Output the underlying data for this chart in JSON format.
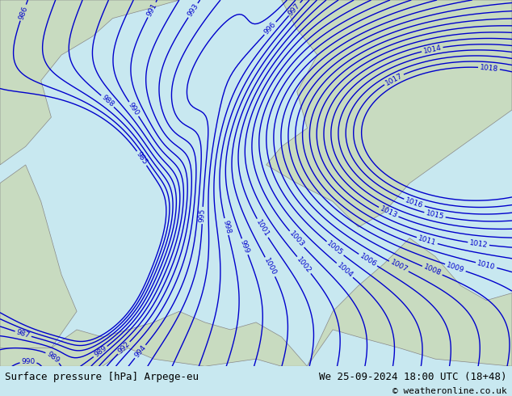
{
  "title_left": "Surface pressure [hPa] Arpege-eu",
  "title_right": "We 25-09-2024 18:00 UTC (18+48)",
  "copyright": "© weatheronline.co.uk",
  "footer_bg": "#d4f5d4",
  "map_bg_light": "#e8f5e8",
  "map_bg_gray": "#d0d0d0",
  "isobar_color": "#0000cc",
  "isobar_color_red": "#cc0000",
  "font_size_footer": 9,
  "font_size_labels": 7,
  "contour_levels": [
    985,
    986,
    987,
    988,
    989,
    990,
    991,
    992,
    993,
    994,
    995,
    996,
    997,
    998,
    999,
    1000,
    1001,
    1002,
    1003,
    1004,
    1005,
    1006,
    1007,
    1008,
    1009,
    1010,
    1011,
    1012,
    1013,
    1014,
    1015,
    1016,
    1017,
    1018
  ],
  "isobar_linewidth": 1.0
}
